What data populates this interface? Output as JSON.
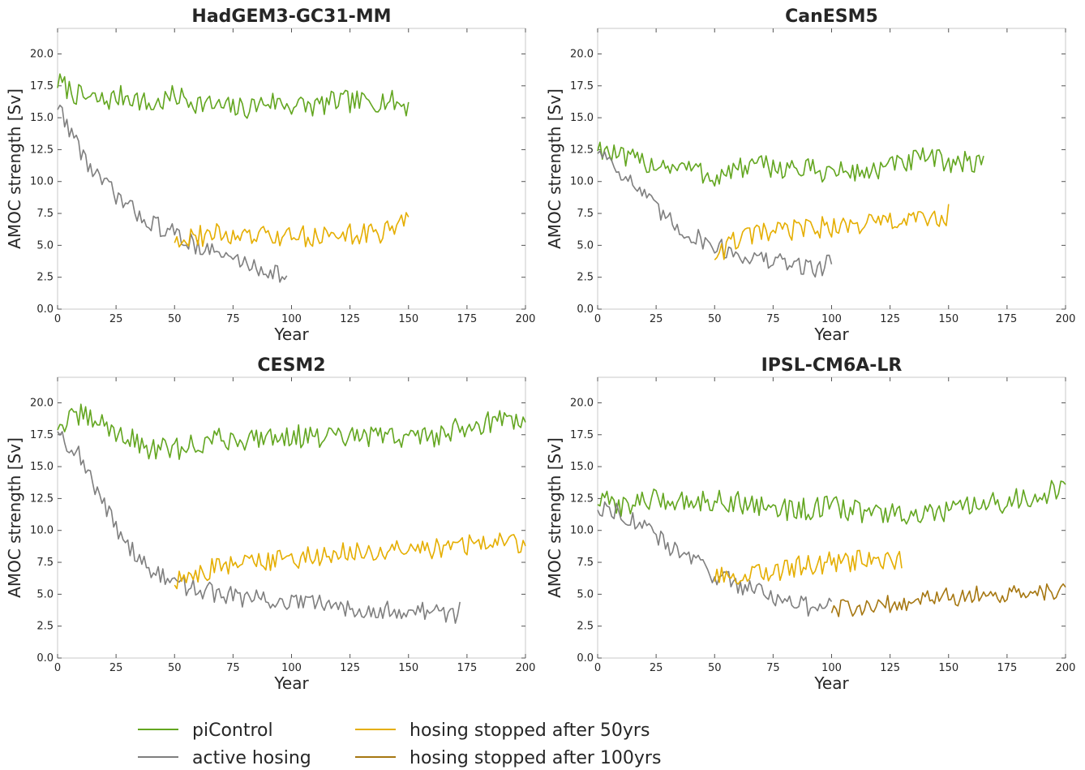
{
  "colors": {
    "piControl": "#63a620",
    "active_hosing": "#7f7f7f",
    "stopped_50": "#e5ae00",
    "stopped_100": "#a67711",
    "axis": "#c8c8c8",
    "text": "#262626"
  },
  "legend": {
    "placement": "bottom-center",
    "entries": [
      {
        "key": "piControl",
        "label": "piControl"
      },
      {
        "key": "active_hosing",
        "label": "active hosing"
      },
      {
        "key": "stopped_50",
        "label": "hosing stopped after 50yrs"
      },
      {
        "key": "stopped_100",
        "label": "hosing stopped after 100yrs"
      }
    ]
  },
  "chart_data": [
    {
      "type": "line",
      "title": "HadGEM3-GC31-MM",
      "xlabel": "Year",
      "ylabel": "AMOC strength [Sv]",
      "xlim": [
        0,
        200
      ],
      "ylim": [
        0,
        22
      ],
      "xticks": [
        "0",
        "25",
        "50",
        "75",
        "100",
        "125",
        "150",
        "175",
        "200"
      ],
      "yticks": [
        "0.0",
        "2.5",
        "5.0",
        "7.5",
        "10.0",
        "12.5",
        "15.0",
        "17.5",
        "20.0"
      ],
      "grid": false,
      "series": [
        {
          "key": "piControl",
          "x": [
            0,
            10,
            20,
            30,
            40,
            50,
            60,
            70,
            80,
            90,
            100,
            110,
            120,
            130,
            140,
            150
          ],
          "values": [
            17.8,
            16.6,
            16.3,
            16.8,
            15.9,
            16.7,
            16.2,
            15.8,
            15.7,
            16.3,
            16.0,
            15.9,
            16.3,
            16.2,
            16.4,
            15.9
          ]
        },
        {
          "key": "active_hosing",
          "x": [
            0,
            5,
            10,
            15,
            20,
            25,
            30,
            35,
            40,
            45,
            50,
            55,
            60,
            65,
            70,
            75,
            80,
            85,
            90,
            95,
            98
          ],
          "values": [
            16.0,
            14.2,
            12.4,
            10.8,
            9.8,
            8.9,
            8.0,
            7.4,
            6.8,
            6.3,
            5.9,
            5.4,
            5.0,
            4.6,
            4.2,
            4.0,
            3.6,
            3.3,
            3.0,
            2.8,
            2.2
          ]
        },
        {
          "key": "stopped_50",
          "x": [
            50,
            60,
            70,
            80,
            90,
            100,
            110,
            120,
            130,
            140,
            148,
            150
          ],
          "values": [
            5.6,
            5.7,
            5.9,
            5.6,
            5.7,
            5.6,
            5.8,
            5.8,
            5.9,
            6.0,
            7.3,
            7.3
          ]
        }
      ]
    },
    {
      "type": "line",
      "title": "CanESM5",
      "xlabel": "Year",
      "ylabel": "AMOC strength [Sv]",
      "xlim": [
        0,
        200
      ],
      "ylim": [
        0,
        22
      ],
      "xticks": [
        "0",
        "25",
        "50",
        "75",
        "100",
        "125",
        "150",
        "175",
        "200"
      ],
      "yticks": [
        "0.0",
        "2.5",
        "5.0",
        "7.5",
        "10.0",
        "12.5",
        "15.0",
        "17.5",
        "20.0"
      ],
      "grid": false,
      "series": [
        {
          "key": "piControl",
          "x": [
            0,
            10,
            20,
            30,
            40,
            50,
            60,
            70,
            80,
            90,
            100,
            110,
            120,
            130,
            140,
            150,
            160,
            165
          ],
          "values": [
            12.8,
            11.8,
            11.5,
            11.3,
            11.0,
            10.3,
            11.0,
            11.2,
            11.1,
            10.9,
            10.8,
            10.7,
            10.9,
            11.4,
            11.8,
            11.6,
            11.4,
            11.9
          ]
        },
        {
          "key": "active_hosing",
          "x": [
            0,
            5,
            10,
            15,
            20,
            25,
            30,
            35,
            40,
            45,
            50,
            55,
            60,
            65,
            70,
            75,
            80,
            85,
            90,
            95,
            100
          ],
          "values": [
            12.5,
            11.8,
            10.8,
            9.8,
            8.9,
            7.8,
            7.0,
            6.3,
            5.8,
            5.4,
            5.0,
            4.6,
            4.3,
            4.1,
            3.9,
            3.7,
            3.6,
            3.5,
            3.3,
            3.2,
            3.8
          ]
        },
        {
          "key": "stopped_50",
          "x": [
            50,
            60,
            70,
            80,
            90,
            100,
            110,
            120,
            130,
            140,
            150
          ],
          "values": [
            4.2,
            5.5,
            5.9,
            6.1,
            6.4,
            6.4,
            6.6,
            6.8,
            6.9,
            7.0,
            7.4
          ]
        }
      ]
    },
    {
      "type": "line",
      "title": "CESM2",
      "xlabel": "Year",
      "ylabel": "AMOC strength [Sv]",
      "xlim": [
        0,
        200
      ],
      "ylim": [
        0,
        22
      ],
      "xticks": [
        "0",
        "25",
        "50",
        "75",
        "100",
        "125",
        "150",
        "175",
        "200"
      ],
      "yticks": [
        "0.0",
        "2.5",
        "5.0",
        "7.5",
        "10.0",
        "12.5",
        "15.0",
        "17.5",
        "20.0"
      ],
      "grid": false,
      "series": [
        {
          "key": "piControl",
          "x": [
            0,
            10,
            20,
            30,
            40,
            50,
            60,
            70,
            80,
            90,
            100,
            110,
            120,
            130,
            140,
            150,
            160,
            170,
            180,
            190,
            200
          ],
          "values": [
            18.2,
            19.0,
            18.3,
            17.2,
            16.4,
            16.3,
            16.8,
            17.2,
            17.1,
            17.5,
            17.4,
            17.3,
            17.2,
            17.3,
            17.4,
            17.3,
            17.4,
            17.9,
            18.4,
            18.7,
            18.4
          ]
        },
        {
          "key": "active_hosing",
          "x": [
            0,
            5,
            10,
            15,
            20,
            25,
            30,
            35,
            40,
            45,
            50,
            60,
            70,
            80,
            90,
            100,
            110,
            120,
            130,
            140,
            150,
            160,
            170,
            172
          ],
          "values": [
            18.0,
            16.7,
            15.8,
            13.5,
            12.0,
            10.3,
            9.0,
            7.8,
            6.8,
            6.3,
            5.9,
            5.4,
            5.0,
            4.7,
            4.5,
            4.4,
            4.2,
            4.1,
            3.9,
            3.8,
            3.7,
            3.6,
            3.4,
            4.0
          ]
        },
        {
          "key": "stopped_50",
          "x": [
            50,
            60,
            70,
            80,
            90,
            100,
            110,
            120,
            130,
            140,
            150,
            160,
            170,
            180,
            190,
            200
          ],
          "values": [
            6.0,
            6.6,
            7.2,
            7.4,
            7.6,
            7.8,
            8.0,
            8.2,
            8.2,
            8.3,
            8.4,
            8.6,
            8.8,
            9.0,
            9.2,
            8.8
          ]
        }
      ]
    },
    {
      "type": "line",
      "title": "IPSL-CM6A-LR",
      "xlabel": "Year",
      "ylabel": "AMOC strength [Sv]",
      "xlim": [
        0,
        200
      ],
      "ylim": [
        0,
        22
      ],
      "xticks": [
        "0",
        "25",
        "50",
        "75",
        "100",
        "125",
        "150",
        "175",
        "200"
      ],
      "yticks": [
        "0.0",
        "2.5",
        "5.0",
        "7.5",
        "10.0",
        "12.5",
        "15.0",
        "17.5",
        "20.0"
      ],
      "grid": false,
      "series": [
        {
          "key": "piControl",
          "x": [
            0,
            10,
            20,
            30,
            40,
            50,
            60,
            70,
            80,
            90,
            100,
            110,
            120,
            130,
            140,
            150,
            160,
            170,
            180,
            190,
            200
          ],
          "values": [
            12.3,
            12.0,
            12.3,
            12.4,
            12.3,
            12.4,
            12.2,
            12.0,
            11.6,
            11.7,
            11.8,
            11.6,
            11.3,
            11.2,
            11.1,
            11.5,
            11.8,
            12.1,
            12.4,
            12.9,
            13.2
          ]
        },
        {
          "key": "active_hosing",
          "x": [
            0,
            10,
            20,
            30,
            40,
            50,
            60,
            70,
            80,
            90,
            100
          ],
          "values": [
            11.8,
            11.5,
            10.2,
            8.8,
            7.8,
            6.5,
            5.8,
            5.3,
            4.5,
            4.0,
            4.6
          ]
        },
        {
          "key": "stopped_50",
          "x": [
            50,
            60,
            70,
            80,
            90,
            100,
            110,
            120,
            130
          ],
          "values": [
            6.2,
            6.4,
            6.7,
            7.0,
            7.3,
            7.5,
            7.6,
            7.6,
            7.5
          ]
        },
        {
          "key": "stopped_100",
          "x": [
            100,
            110,
            120,
            130,
            140,
            150,
            160,
            170,
            180,
            190,
            200
          ],
          "values": [
            3.7,
            4.0,
            4.2,
            4.4,
            4.6,
            4.8,
            4.9,
            5.0,
            4.9,
            5.1,
            5.2
          ]
        }
      ]
    }
  ]
}
